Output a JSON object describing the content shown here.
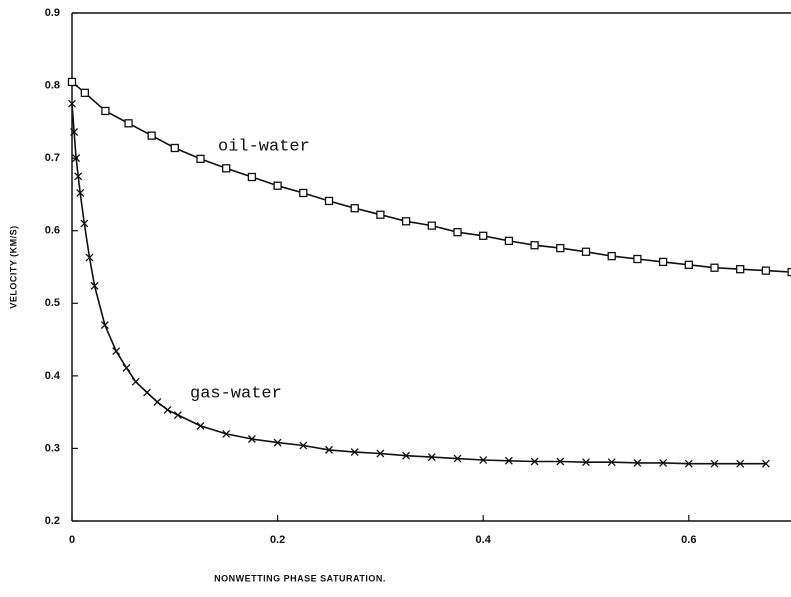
{
  "chart_data": {
    "type": "line",
    "xlabel": "NONWETTING PHASE SATURATION.",
    "ylabel": "VELOCITY (KM/S)",
    "xlim": [
      0,
      0.7
    ],
    "ylim": [
      0.2,
      0.9
    ],
    "xticks": [
      0,
      0.2,
      0.4,
      0.6
    ],
    "yticks": [
      0.2,
      0.3,
      0.4,
      0.5,
      0.6,
      0.7,
      0.8,
      0.9
    ],
    "series": [
      {
        "name": "oil-water",
        "color": "#111111",
        "marker": "square",
        "x": [
          0,
          0.0125,
          0.0325,
          0.055,
          0.0775,
          0.1,
          0.125,
          0.15,
          0.175,
          0.2,
          0.225,
          0.25,
          0.275,
          0.3,
          0.325,
          0.35,
          0.375,
          0.4,
          0.425,
          0.45,
          0.475,
          0.5,
          0.525,
          0.55,
          0.575,
          0.6,
          0.625,
          0.65,
          0.675,
          0.7
        ],
        "values": [
          0.805,
          0.79,
          0.765,
          0.748,
          0.731,
          0.714,
          0.699,
          0.686,
          0.674,
          0.662,
          0.652,
          0.641,
          0.631,
          0.622,
          0.613,
          0.607,
          0.598,
          0.593,
          0.586,
          0.58,
          0.576,
          0.571,
          0.565,
          0.561,
          0.557,
          0.553,
          0.549,
          0.547,
          0.545,
          0.543
        ]
      },
      {
        "name": "gas-water",
        "color": "#111111",
        "marker": "cross",
        "x": [
          0,
          0.002,
          0.004,
          0.006,
          0.008,
          0.012,
          0.017,
          0.022,
          0.032,
          0.043,
          0.053,
          0.062,
          0.073,
          0.083,
          0.093,
          0.103,
          0.125,
          0.15,
          0.175,
          0.2,
          0.225,
          0.25,
          0.275,
          0.3,
          0.325,
          0.35,
          0.375,
          0.4,
          0.425,
          0.45,
          0.475,
          0.5,
          0.525,
          0.55,
          0.575,
          0.6,
          0.625,
          0.65,
          0.675
        ],
        "values": [
          0.775,
          0.736,
          0.7,
          0.675,
          0.652,
          0.61,
          0.563,
          0.524,
          0.47,
          0.434,
          0.411,
          0.392,
          0.377,
          0.364,
          0.353,
          0.346,
          0.331,
          0.32,
          0.313,
          0.308,
          0.304,
          0.298,
          0.295,
          0.293,
          0.29,
          0.288,
          0.286,
          0.284,
          0.283,
          0.282,
          0.282,
          0.281,
          0.281,
          0.28,
          0.28,
          0.279,
          0.279,
          0.279,
          0.279
        ]
      }
    ]
  }
}
